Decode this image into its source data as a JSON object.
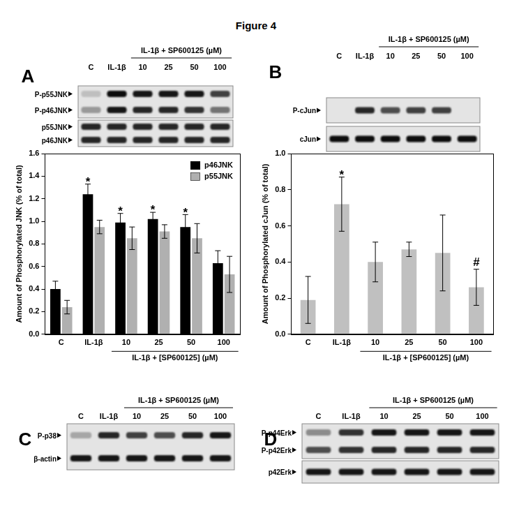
{
  "figure": {
    "title": "Figure 4",
    "panels": [
      {
        "letter": "A",
        "blot": {
          "header": "IL-1β + SP600125 (µM)",
          "lanes": [
            "C",
            "IL-1β",
            "10",
            "25",
            "50",
            "100"
          ],
          "boxes": [
            {
              "rows": [
                {
                  "label": "P-p55JNK",
                  "intensity": [
                    0.25,
                    0.95,
                    0.9,
                    0.9,
                    0.9,
                    0.75
                  ]
                },
                {
                  "label": "P-p46JNK",
                  "intensity": [
                    0.4,
                    0.9,
                    0.85,
                    0.85,
                    0.8,
                    0.55
                  ]
                }
              ]
            },
            {
              "rows": [
                {
                  "label": "p55JNK",
                  "intensity": [
                    0.85,
                    0.85,
                    0.85,
                    0.85,
                    0.85,
                    0.85
                  ]
                },
                {
                  "label": "p46JNK",
                  "intensity": [
                    0.85,
                    0.85,
                    0.85,
                    0.85,
                    0.85,
                    0.85
                  ]
                }
              ]
            }
          ]
        }
      },
      {
        "letter": "B",
        "blot": {
          "header": "IL-1β + SP600125 (µM)",
          "lanes": [
            "C",
            "IL-1β",
            "10",
            "25",
            "50",
            "100"
          ],
          "boxes": [
            {
              "rows": [
                {
                  "label": "P-cJun",
                  "intensity": [
                    0,
                    0.85,
                    0.7,
                    0.75,
                    0.75,
                    0
                  ]
                }
              ]
            },
            {
              "rows": [
                {
                  "label": "cJun",
                  "intensity": [
                    0.95,
                    0.95,
                    0.95,
                    0.95,
                    0.95,
                    0.95
                  ]
                }
              ]
            }
          ]
        }
      },
      {
        "letter": "C",
        "blot": {
          "header": "IL-1β + SP600125 (µM)",
          "lanes": [
            "C",
            "IL-1β",
            "10",
            "25",
            "50",
            "100"
          ],
          "boxes": [
            {
              "rows": [
                {
                  "label": "P-p38",
                  "intensity": [
                    0.35,
                    0.85,
                    0.75,
                    0.7,
                    0.85,
                    0.9
                  ]
                },
                {
                  "label": "β-actin",
                  "intensity": [
                    0.9,
                    0.9,
                    0.9,
                    0.9,
                    0.9,
                    0.9
                  ]
                }
              ]
            }
          ]
        }
      },
      {
        "letter": "D",
        "blot": {
          "header": "IL-1β + SP600125 (µM)",
          "lanes": [
            "C",
            "IL-1β",
            "10",
            "25",
            "50",
            "100"
          ],
          "boxes": [
            {
              "rows": [
                {
                  "label": "P-p44Erk",
                  "intensity": [
                    0.45,
                    0.8,
                    0.9,
                    0.9,
                    0.9,
                    0.9
                  ]
                },
                {
                  "label": "P-p42Erk",
                  "intensity": [
                    0.7,
                    0.8,
                    0.85,
                    0.85,
                    0.85,
                    0.85
                  ]
                }
              ]
            },
            {
              "rows": [
                {
                  "label": "p42Erk",
                  "intensity": [
                    0.9,
                    0.9,
                    0.9,
                    0.9,
                    0.9,
                    0.9
                  ]
                }
              ]
            }
          ]
        }
      }
    ]
  },
  "chart_data": [
    {
      "type": "bar",
      "y_label": "Amount of Phosphorylated JNK (% of total)",
      "x_label": "IL-1β + [SP600125] (µM)",
      "categories": [
        "C",
        "IL-1β",
        "10",
        "25",
        "50",
        "100"
      ],
      "series": [
        {
          "name": "p46JNK",
          "color": "#000000",
          "values": [
            0.4,
            1.24,
            0.99,
            1.02,
            0.95,
            0.63
          ],
          "errors": [
            0.07,
            0.09,
            0.08,
            0.06,
            0.11,
            0.11
          ]
        },
        {
          "name": "p55JNK",
          "color": "#b0b0b0",
          "values": [
            0.24,
            0.95,
            0.85,
            0.91,
            0.85,
            0.53
          ],
          "errors": [
            0.06,
            0.06,
            0.1,
            0.06,
            0.13,
            0.16
          ]
        }
      ],
      "ylim": [
        0,
        1.6
      ],
      "yticks": [
        {
          "value": 0,
          "label": "0.0"
        },
        0.2,
        0.4,
        0.6,
        0.8,
        {
          "value": 1,
          "label": "1.0"
        },
        1.2,
        1.4,
        1.6
      ],
      "grid": false,
      "legend": "upper right",
      "annotations": [
        {
          "category": "IL-1β",
          "series": "p46JNK",
          "text": "*"
        },
        {
          "category": "10",
          "series": "p46JNK",
          "text": "*"
        },
        {
          "category": "25",
          "series": "p46JNK",
          "text": "*"
        },
        {
          "category": "50",
          "series": "p46JNK",
          "text": "*"
        }
      ]
    },
    {
      "type": "bar",
      "y_label": "Amount of Phosphorylated cJun (% of total)",
      "x_label": "IL-1β + [SP600125] (µM)",
      "categories": [
        "C",
        "IL-1β",
        "10",
        "25",
        "50",
        "100"
      ],
      "values": [
        0.19,
        0.72,
        0.4,
        0.47,
        0.45,
        0.26
      ],
      "errors": [
        0.13,
        0.15,
        0.11,
        0.04,
        0.21,
        0.1
      ],
      "color": "#c0c0c0",
      "ylim": [
        0,
        1.0
      ],
      "yticks": [
        {
          "value": 0,
          "label": "0.0"
        },
        0.2,
        0.4,
        0.6,
        0.8,
        {
          "value": 1,
          "label": "1.0"
        }
      ],
      "grid": false,
      "annotations": [
        {
          "category": "IL-1β",
          "text": "*"
        },
        {
          "category": "100",
          "text": "#"
        }
      ]
    }
  ]
}
